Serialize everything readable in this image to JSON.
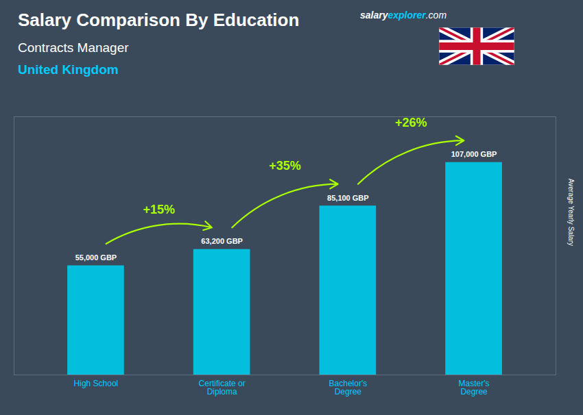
{
  "chart_data": {
    "type": "bar",
    "title": "Salary Comparison By Education",
    "subtitle": [
      "Contracts Manager",
      "United Kingdom"
    ],
    "ylabel": "Average Yearly Salary",
    "categories": [
      "High School",
      "Certificate or\nDiploma",
      "Bachelor's\nDegree",
      "Master's\nDegree"
    ],
    "values": [
      55000,
      63200,
      85100,
      107000
    ],
    "value_labels": [
      "55,000 GBP",
      "63,200 GBP",
      "85,100 GBP",
      "107,000 GBP"
    ],
    "data_labels": true,
    "color": "#00c8e8",
    "ylim": [
      0,
      130000
    ],
    "tick_labels": "x",
    "annotations": [
      {
        "from": "High School",
        "to": "Certificate or\nDiploma",
        "text": "+15%"
      },
      {
        "from": "Certificate or\nDiploma",
        "to": "Bachelor's\nDegree",
        "text": "+35%"
      },
      {
        "from": "Bachelor's\nDegree",
        "to": "Master's\nDegree",
        "text": "+26%"
      },
      {
        "text": [
          "salary",
          "explorer",
          ".com"
        ]
      }
    ]
  }
}
